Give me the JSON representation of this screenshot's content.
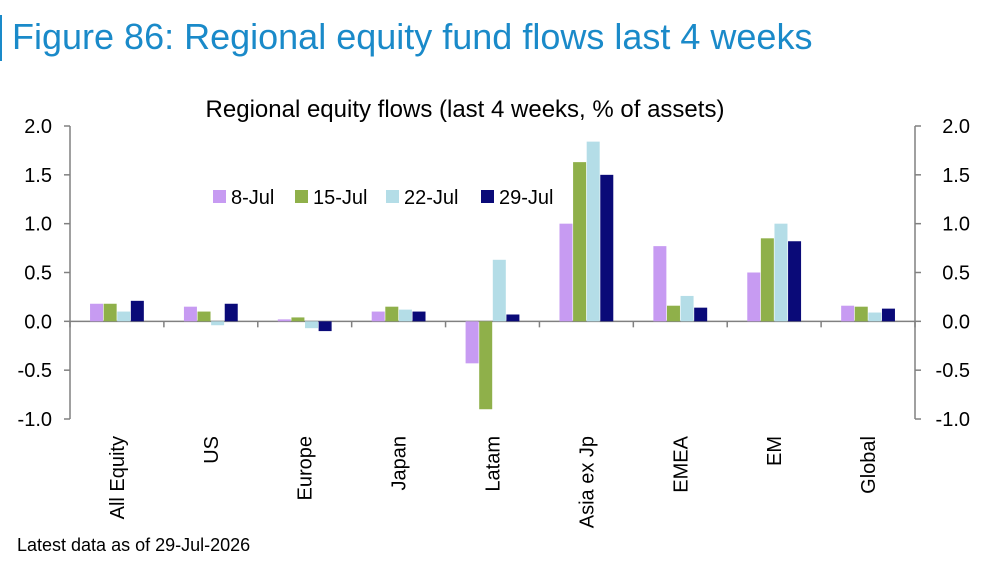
{
  "figure_title": "Figure 86: Regional equity fund flows last 4 weeks",
  "footnote": "Latest data as of 29-Jul-2026",
  "colors": {
    "title": "#1a8ac9",
    "series": [
      "#c79bf2",
      "#8fb04a",
      "#b4dde7",
      "#0a0a78"
    ],
    "axis": "#808080"
  },
  "chart_data": {
    "type": "bar",
    "title": "Regional equity flows (last 4 weeks, % of assets)",
    "xlabel": "",
    "ylabel": "",
    "ylim": [
      -1.0,
      2.0
    ],
    "yticks": [
      "2.0",
      "1.5",
      "1.0",
      "0.5",
      "0.0",
      "-0.5",
      "-1.0"
    ],
    "ytick_values": [
      2.0,
      1.5,
      1.0,
      0.5,
      0.0,
      -0.5,
      -1.0
    ],
    "secondary_axis": true,
    "grid": false,
    "legend_position": "top-left",
    "categories": [
      "All Equity",
      "US",
      "Europe",
      "Japan",
      "Latam",
      "Asia ex Jp",
      "EMEA",
      "EM",
      "Global"
    ],
    "series": [
      {
        "name": "8-Jul",
        "values": [
          0.18,
          0.15,
          0.02,
          0.1,
          -0.43,
          1.0,
          0.77,
          0.5,
          0.16
        ]
      },
      {
        "name": "15-Jul",
        "values": [
          0.18,
          0.1,
          0.04,
          0.15,
          -0.9,
          1.63,
          0.16,
          0.85,
          0.15
        ]
      },
      {
        "name": "22-Jul",
        "values": [
          0.1,
          -0.04,
          -0.07,
          0.12,
          0.63,
          1.84,
          0.26,
          1.0,
          0.09
        ]
      },
      {
        "name": "29-Jul",
        "values": [
          0.21,
          0.18,
          -0.1,
          0.1,
          0.07,
          1.5,
          0.14,
          0.82,
          0.13
        ]
      }
    ]
  }
}
